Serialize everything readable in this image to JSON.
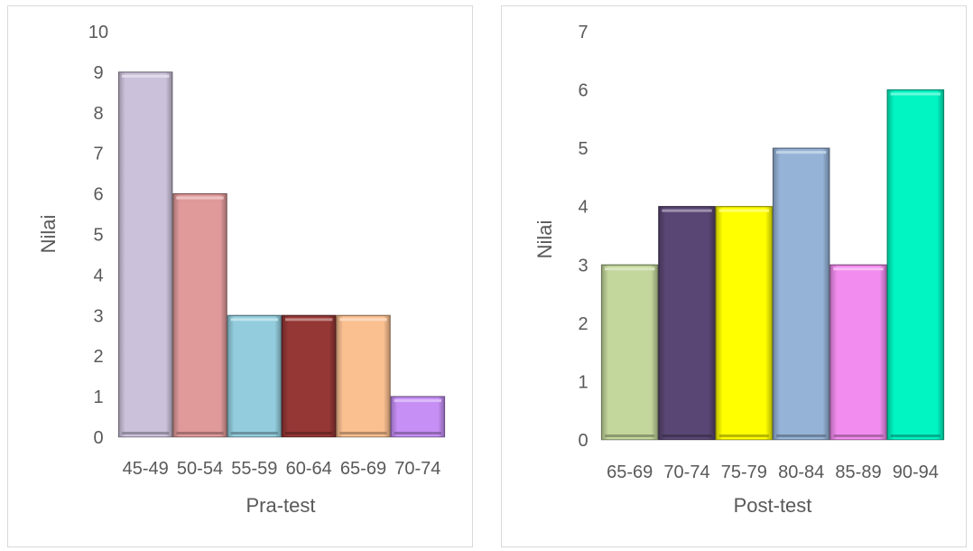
{
  "chart_data": [
    {
      "type": "bar",
      "categories": [
        "45-49",
        "50-54",
        "55-59",
        "60-64",
        "65-69",
        "70-74"
      ],
      "values": [
        9,
        6,
        3,
        3,
        3,
        1
      ],
      "xlabel": "Pra-test",
      "ylabel": "Nilai",
      "ylim": [
        0,
        10
      ],
      "yticks": [
        "0",
        "1",
        "2",
        "3",
        "4",
        "5",
        "6",
        "7",
        "8",
        "9",
        "10"
      ],
      "colors": [
        "#CCC1DA",
        "#E09A9A",
        "#93CDDD",
        "#953735",
        "#FAC090",
        "#C58FF5"
      ],
      "grid": false,
      "legend": "none"
    },
    {
      "type": "bar",
      "categories": [
        "65-69",
        "70-74",
        "75-79",
        "80-84",
        "85-89",
        "90-94"
      ],
      "values": [
        3,
        4,
        4,
        5,
        3,
        6
      ],
      "xlabel": "Post-test",
      "ylabel": "Nilai",
      "ylim": [
        0,
        7
      ],
      "yticks": [
        "0",
        "1",
        "2",
        "3",
        "4",
        "5",
        "6",
        "7"
      ],
      "colors": [
        "#C3D69B",
        "#5A4674",
        "#FFFF00",
        "#95B3D7",
        "#F28CEF",
        "#00F5C3"
      ],
      "grid": false,
      "legend": "none"
    }
  ]
}
